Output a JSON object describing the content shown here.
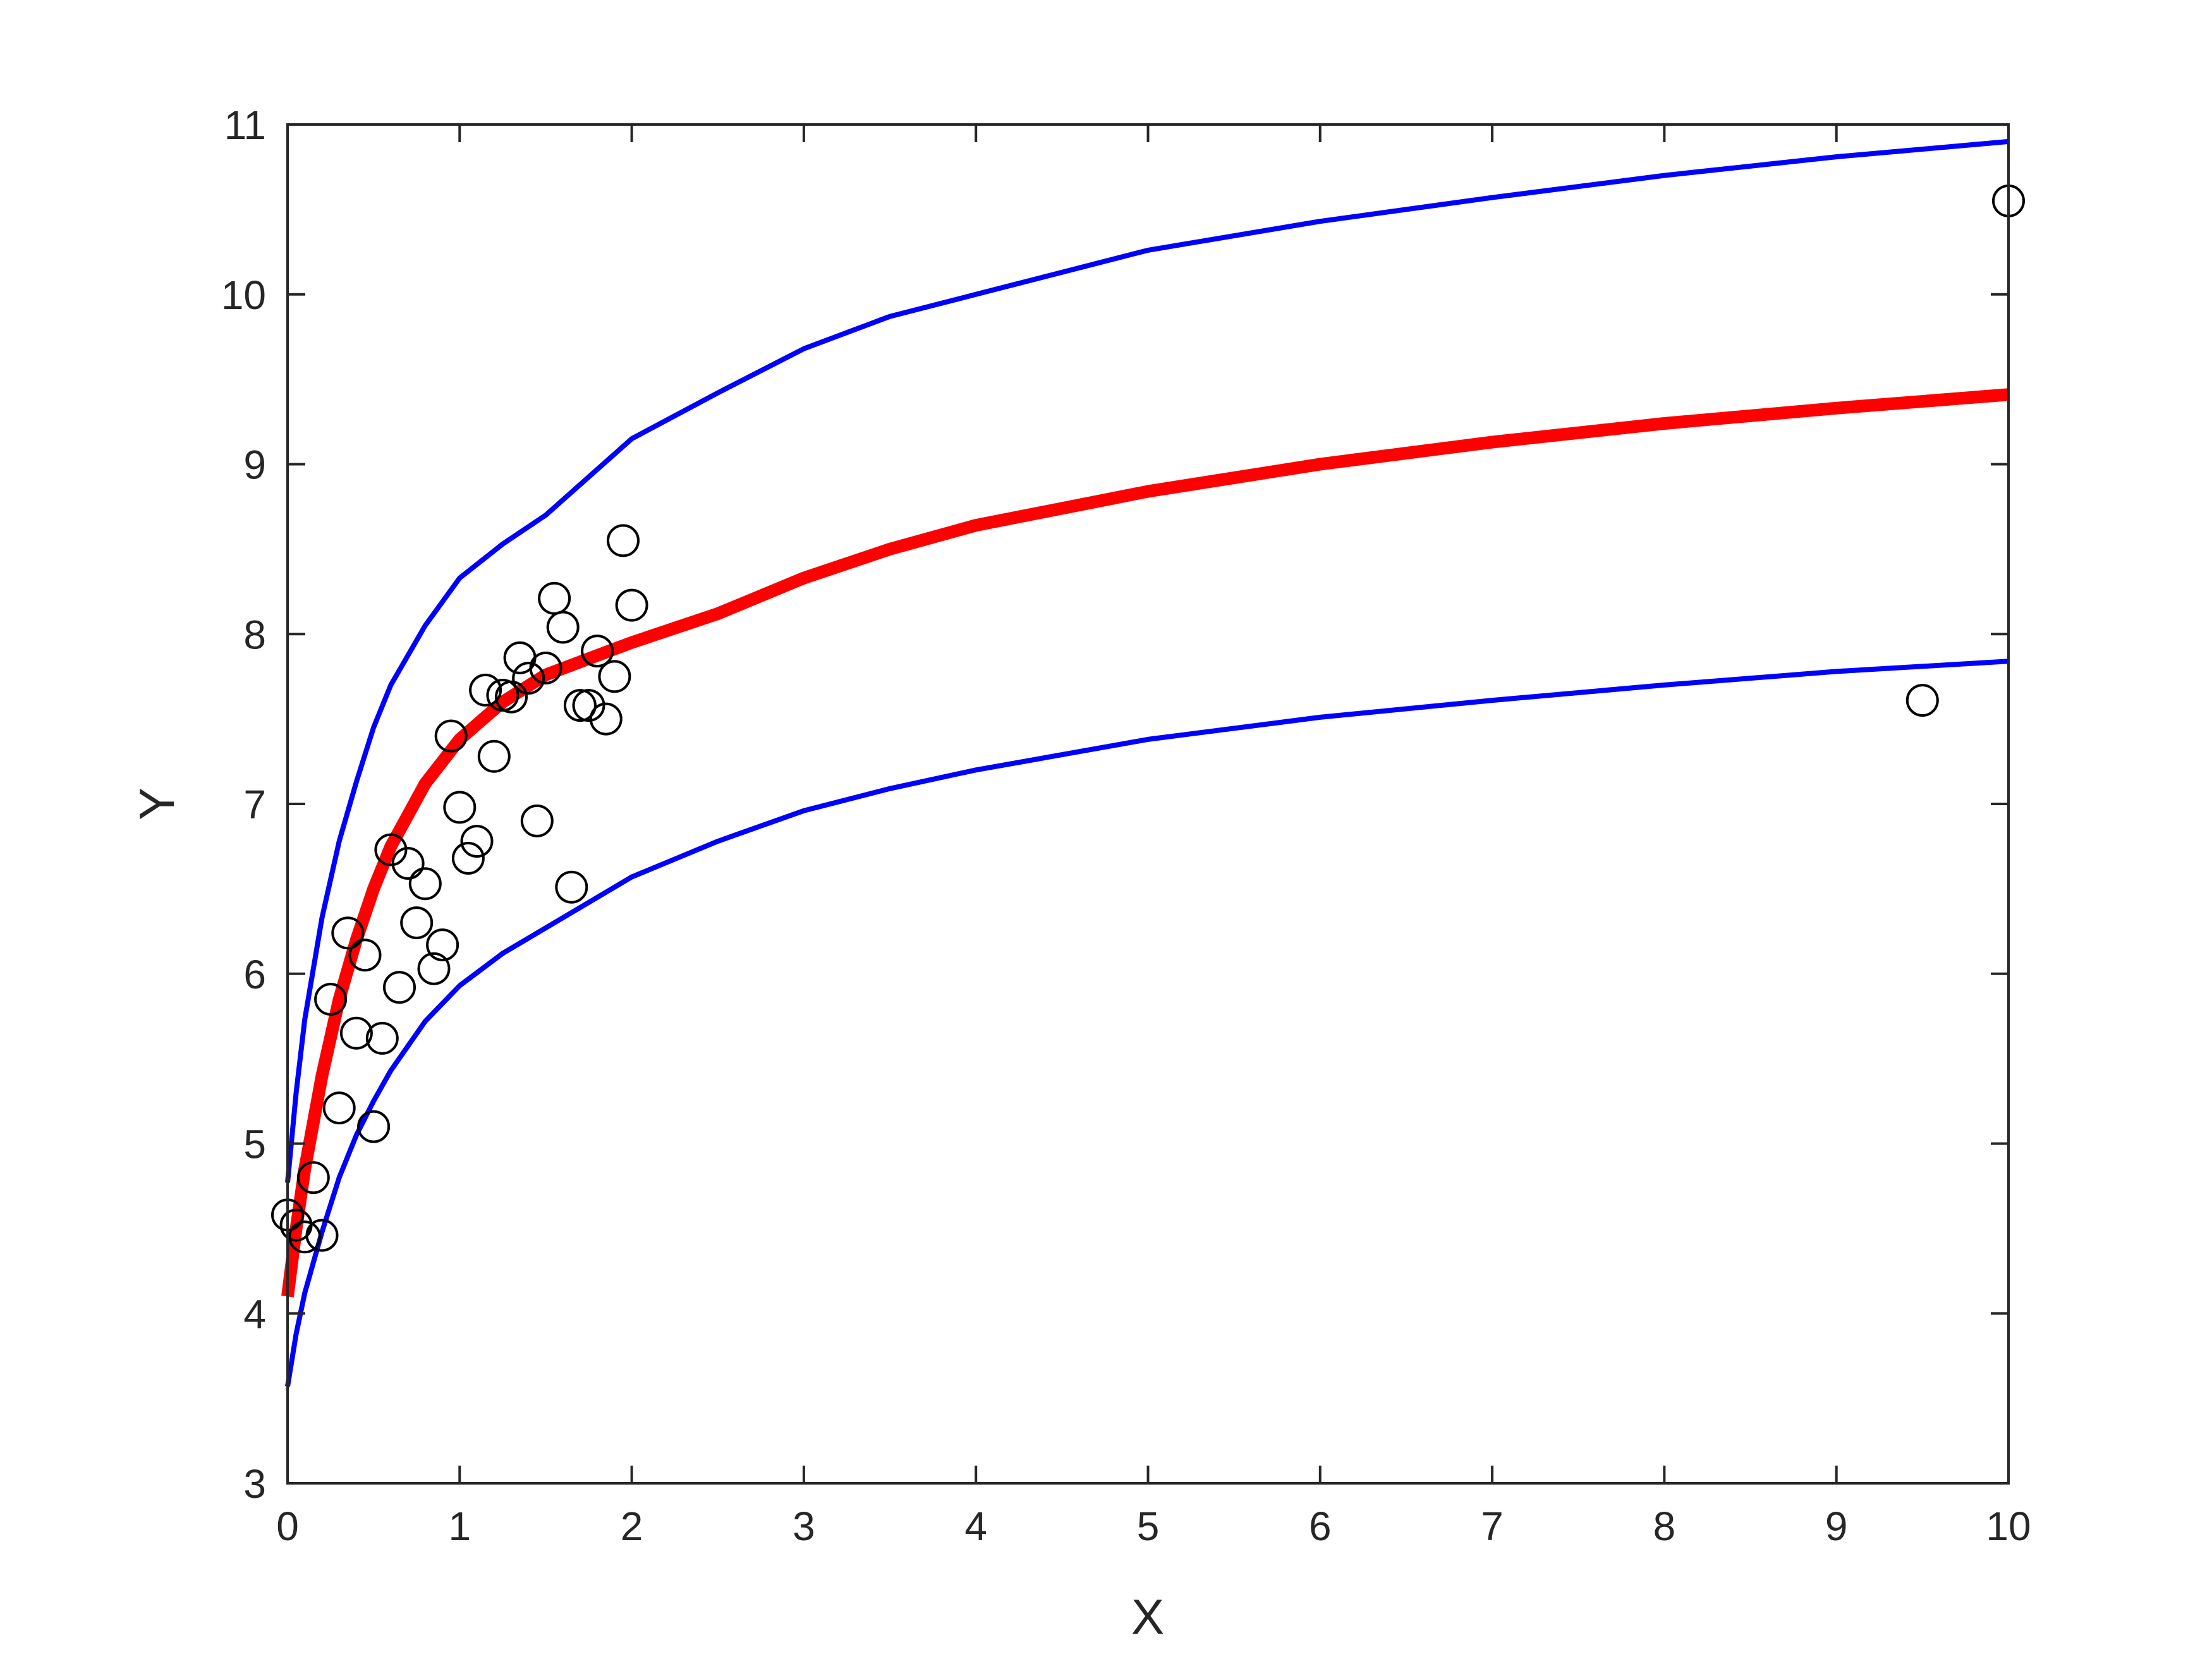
{
  "chart_data": {
    "type": "scatter",
    "title": "",
    "xlabel": "X",
    "ylabel": "Y",
    "xlim": [
      0,
      10
    ],
    "ylim": [
      3,
      11
    ],
    "xticks": [
      0,
      1,
      2,
      3,
      4,
      5,
      6,
      7,
      8,
      9,
      10
    ],
    "yticks": [
      3,
      4,
      5,
      6,
      7,
      8,
      9,
      10,
      11
    ],
    "grid": false,
    "box": true,
    "colors": {
      "fit": "#ff0000",
      "bounds": "#0000ff",
      "points": "#000000",
      "axes": "#262626"
    },
    "points": [
      {
        "x": 0.0,
        "y": 4.58
      },
      {
        "x": 0.05,
        "y": 4.52
      },
      {
        "x": 0.1,
        "y": 4.45
      },
      {
        "x": 0.15,
        "y": 4.8
      },
      {
        "x": 0.2,
        "y": 4.46
      },
      {
        "x": 0.25,
        "y": 5.85
      },
      {
        "x": 0.3,
        "y": 5.21
      },
      {
        "x": 0.35,
        "y": 6.24
      },
      {
        "x": 0.4,
        "y": 5.65
      },
      {
        "x": 0.45,
        "y": 6.11
      },
      {
        "x": 0.5,
        "y": 5.1
      },
      {
        "x": 0.55,
        "y": 5.62
      },
      {
        "x": 0.6,
        "y": 6.73
      },
      {
        "x": 0.65,
        "y": 5.92
      },
      {
        "x": 0.7,
        "y": 6.65
      },
      {
        "x": 0.75,
        "y": 6.3
      },
      {
        "x": 0.8,
        "y": 6.53
      },
      {
        "x": 0.85,
        "y": 6.03
      },
      {
        "x": 0.9,
        "y": 6.17
      },
      {
        "x": 0.95,
        "y": 7.4
      },
      {
        "x": 1.0,
        "y": 6.98
      },
      {
        "x": 1.05,
        "y": 6.68
      },
      {
        "x": 1.1,
        "y": 6.78
      },
      {
        "x": 1.15,
        "y": 7.67
      },
      {
        "x": 1.2,
        "y": 7.28
      },
      {
        "x": 1.25,
        "y": 7.64
      },
      {
        "x": 1.3,
        "y": 7.63
      },
      {
        "x": 1.35,
        "y": 7.86
      },
      {
        "x": 1.4,
        "y": 7.74
      },
      {
        "x": 1.45,
        "y": 6.9
      },
      {
        "x": 1.5,
        "y": 7.8
      },
      {
        "x": 1.55,
        "y": 8.21
      },
      {
        "x": 1.6,
        "y": 8.04
      },
      {
        "x": 1.65,
        "y": 6.51
      },
      {
        "x": 1.7,
        "y": 7.58
      },
      {
        "x": 1.75,
        "y": 7.58
      },
      {
        "x": 1.8,
        "y": 7.9
      },
      {
        "x": 1.85,
        "y": 7.5
      },
      {
        "x": 1.9,
        "y": 7.75
      },
      {
        "x": 1.95,
        "y": 8.55
      },
      {
        "x": 2.0,
        "y": 8.17
      },
      {
        "x": 9.5,
        "y": 7.61
      },
      {
        "x": 10.0,
        "y": 10.55
      }
    ],
    "series": [
      {
        "kind": "fit",
        "color": "#ff0000",
        "x": [
          0.0,
          0.05,
          0.1,
          0.2,
          0.3,
          0.4,
          0.5,
          0.6,
          0.8,
          1.0,
          1.25,
          1.5,
          2.0,
          2.5,
          3.0,
          3.5,
          4.0,
          5.0,
          6.0,
          7.0,
          8.0,
          9.0,
          10.0
        ],
        "y": [
          4.1,
          4.5,
          4.85,
          5.4,
          5.85,
          6.2,
          6.5,
          6.75,
          7.12,
          7.38,
          7.6,
          7.76,
          7.95,
          8.12,
          8.33,
          8.5,
          8.64,
          8.84,
          9.0,
          9.13,
          9.24,
          9.33,
          9.41
        ]
      },
      {
        "kind": "upper",
        "color": "#0000ff",
        "x": [
          0.0,
          0.05,
          0.1,
          0.2,
          0.3,
          0.4,
          0.5,
          0.6,
          0.8,
          1.0,
          1.25,
          1.5,
          2.0,
          2.5,
          3.0,
          3.5,
          4.0,
          5.0,
          6.0,
          7.0,
          8.0,
          9.0,
          10.0
        ],
        "y": [
          4.77,
          5.3,
          5.73,
          6.33,
          6.78,
          7.13,
          7.45,
          7.7,
          8.05,
          8.33,
          8.53,
          8.7,
          9.15,
          9.42,
          9.68,
          9.87,
          10.0,
          10.26,
          10.43,
          10.57,
          10.7,
          10.81,
          10.9
        ]
      },
      {
        "kind": "lower",
        "color": "#0000ff",
        "x": [
          0.0,
          0.05,
          0.1,
          0.2,
          0.3,
          0.4,
          0.5,
          0.6,
          0.8,
          1.0,
          1.25,
          1.5,
          2.0,
          2.5,
          3.0,
          3.5,
          4.0,
          5.0,
          6.0,
          7.0,
          8.0,
          9.0,
          10.0
        ],
        "y": [
          3.57,
          3.88,
          4.12,
          4.48,
          4.8,
          5.05,
          5.25,
          5.43,
          5.72,
          5.93,
          6.12,
          6.27,
          6.57,
          6.78,
          6.96,
          7.09,
          7.2,
          7.38,
          7.51,
          7.61,
          7.7,
          7.78,
          7.84
        ]
      }
    ]
  }
}
